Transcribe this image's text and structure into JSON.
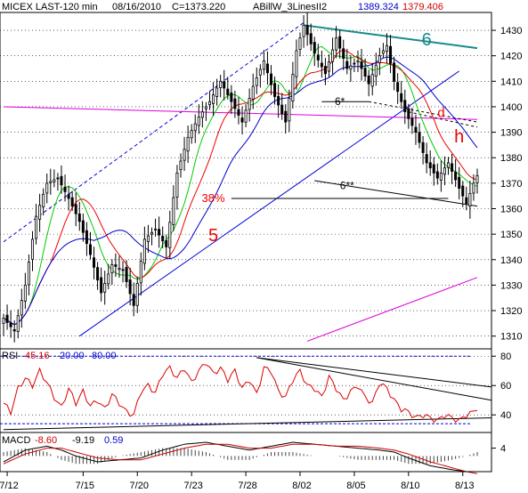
{
  "chart_data": [
    {
      "type": "candlestick",
      "panel": "price",
      "header": {
        "symbol": "MICEX LAST-120 min",
        "date": "08/16/2010",
        "close": "C=1373.220",
        "study": "ABillW_3LinesII2",
        "value1": "1389.324",
        "value2": "1379.406"
      },
      "ylim": [
        1305,
        1437
      ],
      "yticks": [
        1310,
        1320,
        1330,
        1340,
        1350,
        1360,
        1370,
        1380,
        1390,
        1400,
        1410,
        1420,
        1430
      ],
      "xlabels": [
        {
          "label": "7/12",
          "bar": 1
        },
        {
          "label": "7/15",
          "bar": 22
        },
        {
          "label": "7/20",
          "bar": 37
        },
        {
          "label": "7/23",
          "bar": 52
        },
        {
          "label": "7/28",
          "bar": 67
        },
        {
          "label": "8/02",
          "bar": 82
        },
        {
          "label": "8/05",
          "bar": 97
        },
        {
          "label": "8/10",
          "bar": 112
        },
        {
          "label": "8/13",
          "bar": 127
        }
      ],
      "bar_count": 132,
      "close_anchors": [
        [
          0,
          1317
        ],
        [
          3,
          1312
        ],
        [
          6,
          1330
        ],
        [
          9,
          1357
        ],
        [
          12,
          1370
        ],
        [
          15,
          1372
        ],
        [
          18,
          1364
        ],
        [
          21,
          1355
        ],
        [
          24,
          1342
        ],
        [
          27,
          1327
        ],
        [
          30,
          1338
        ],
        [
          33,
          1336
        ],
        [
          36,
          1322
        ],
        [
          39,
          1348
        ],
        [
          42,
          1352
        ],
        [
          45,
          1345
        ],
        [
          48,
          1374
        ],
        [
          51,
          1388
        ],
        [
          54,
          1396
        ],
        [
          57,
          1402
        ],
        [
          60,
          1410
        ],
        [
          63,
          1402
        ],
        [
          66,
          1394
        ],
        [
          69,
          1408
        ],
        [
          72,
          1418
        ],
        [
          75,
          1404
        ],
        [
          78,
          1394
        ],
        [
          81,
          1422
        ],
        [
          83,
          1432
        ],
        [
          86,
          1421
        ],
        [
          89,
          1413
        ],
        [
          92,
          1427
        ],
        [
          95,
          1415
        ],
        [
          98,
          1418
        ],
        [
          101,
          1409
        ],
        [
          104,
          1420
        ],
        [
          106,
          1424
        ],
        [
          108,
          1410
        ],
        [
          111,
          1398
        ],
        [
          114,
          1390
        ],
        [
          117,
          1378
        ],
        [
          120,
          1372
        ],
        [
          123,
          1378
        ],
        [
          126,
          1368
        ],
        [
          128,
          1362
        ],
        [
          130,
          1370
        ],
        [
          131,
          1373
        ]
      ],
      "moving_averages": [
        {
          "color": "#00cc00",
          "period": 8
        },
        {
          "color": "#ee0000",
          "period": 14
        },
        {
          "color": "#0000cc",
          "period": 26
        }
      ],
      "annotations": [
        {
          "text": "6",
          "color": "#1a8a8a"
        },
        {
          "text": "5",
          "color": "#ee0000"
        },
        {
          "text": "h",
          "color": "#ee0000"
        },
        {
          "text": "d",
          "color": "#ee0000"
        },
        {
          "text": "38%",
          "color": "#ee0000"
        },
        {
          "text": "6*",
          "color": "#000000"
        },
        {
          "text": "6**",
          "color": "#000000"
        }
      ],
      "lines": [
        {
          "name": "channel-6",
          "color": "#1a8a8a",
          "from": [
            83,
            1432
          ],
          "to": [
            131,
            1423
          ]
        },
        {
          "name": "uptrend-5",
          "color": "#0000dd",
          "from": [
            21,
            1310
          ],
          "to": [
            126,
            1414
          ]
        },
        {
          "name": "uptrend-5-dashed",
          "color": "#0000dd",
          "from": [
            0,
            1347
          ],
          "to": [
            83,
            1433
          ]
        },
        {
          "name": "magenta-top",
          "color": "#dd00dd",
          "from": [
            0,
            1400
          ],
          "to": [
            131,
            1395
          ]
        },
        {
          "name": "magenta-bottom",
          "color": "#dd00dd",
          "from": [
            84,
            1308
          ],
          "to": [
            131,
            1333
          ]
        },
        {
          "name": "fib-38",
          "color": "#000000",
          "from": [
            63,
            1364
          ],
          "to": [
            123,
            1364
          ]
        },
        {
          "name": "line-6-star",
          "color": "#000000",
          "from": [
            88,
            1402
          ],
          "to": [
            101,
            1402
          ]
        },
        {
          "name": "line-6-star2",
          "color": "#000000",
          "from": [
            86,
            1371
          ],
          "to": [
            131,
            1361
          ]
        }
      ]
    },
    {
      "type": "line",
      "panel": "rsi",
      "header": {
        "label": "RSI",
        "value": "45.16",
        "low": "20.00",
        "high": "80.00"
      },
      "ylim": [
        28,
        85
      ],
      "yticks": [
        40,
        60,
        80
      ],
      "hlines": [
        80,
        34
      ],
      "anchors": [
        [
          0,
          48
        ],
        [
          2,
          42
        ],
        [
          4,
          58
        ],
        [
          6,
          65
        ],
        [
          8,
          60
        ],
        [
          10,
          70
        ],
        [
          12,
          62
        ],
        [
          14,
          52
        ],
        [
          16,
          45
        ],
        [
          18,
          58
        ],
        [
          20,
          48
        ],
        [
          22,
          56
        ],
        [
          24,
          46
        ],
        [
          26,
          50
        ],
        [
          28,
          44
        ],
        [
          30,
          54
        ],
        [
          32,
          48
        ],
        [
          34,
          42
        ],
        [
          36,
          40
        ],
        [
          38,
          56
        ],
        [
          40,
          60
        ],
        [
          42,
          55
        ],
        [
          44,
          68
        ],
        [
          46,
          72
        ],
        [
          48,
          65
        ],
        [
          50,
          72
        ],
        [
          52,
          62
        ],
        [
          54,
          70
        ],
        [
          56,
          76
        ],
        [
          58,
          68
        ],
        [
          60,
          72
        ],
        [
          62,
          64
        ],
        [
          64,
          70
        ],
        [
          66,
          58
        ],
        [
          68,
          64
        ],
        [
          70,
          54
        ],
        [
          72,
          72
        ],
        [
          74,
          70
        ],
        [
          76,
          56
        ],
        [
          78,
          52
        ],
        [
          80,
          64
        ],
        [
          82,
          70
        ],
        [
          84,
          60
        ],
        [
          86,
          58
        ],
        [
          88,
          52
        ],
        [
          90,
          66
        ],
        [
          92,
          58
        ],
        [
          94,
          50
        ],
        [
          96,
          56
        ],
        [
          98,
          60
        ],
        [
          100,
          52
        ],
        [
          102,
          48
        ],
        [
          104,
          62
        ],
        [
          106,
          58
        ],
        [
          108,
          50
        ],
        [
          110,
          44
        ],
        [
          112,
          42
        ],
        [
          114,
          38
        ],
        [
          116,
          40
        ],
        [
          118,
          38
        ],
        [
          120,
          36
        ],
        [
          122,
          40
        ],
        [
          124,
          38
        ],
        [
          126,
          36
        ],
        [
          128,
          40
        ],
        [
          130,
          42
        ],
        [
          131,
          45
        ]
      ],
      "lines": [
        {
          "color": "#000000",
          "from": [
            70,
            79
          ],
          "to": [
            131,
            50
          ]
        },
        {
          "color": "#000000",
          "from": [
            70,
            79
          ],
          "to": [
            131,
            59
          ]
        },
        {
          "color": "#000000",
          "from": [
            0,
            30
          ],
          "to": [
            131,
            38
          ]
        }
      ]
    },
    {
      "type": "histogram",
      "panel": "macd",
      "header": {
        "label": "MACD",
        "value1": "-8.60",
        "value2": "-9.19",
        "value3": "0.59"
      },
      "ylim": [
        -8,
        12
      ],
      "yticks": [
        4
      ],
      "macd_anchors": [
        [
          0,
          -3
        ],
        [
          6,
          3
        ],
        [
          12,
          5
        ],
        [
          16,
          3
        ],
        [
          20,
          0
        ],
        [
          26,
          -3
        ],
        [
          32,
          -2
        ],
        [
          38,
          -1
        ],
        [
          44,
          3
        ],
        [
          50,
          6
        ],
        [
          56,
          7
        ],
        [
          62,
          5
        ],
        [
          68,
          3
        ],
        [
          74,
          5
        ],
        [
          80,
          7
        ],
        [
          86,
          6
        ],
        [
          92,
          5
        ],
        [
          98,
          4
        ],
        [
          104,
          3
        ],
        [
          108,
          2
        ],
        [
          112,
          -1
        ],
        [
          118,
          -5
        ],
        [
          124,
          -7
        ],
        [
          128,
          -8
        ],
        [
          131,
          -8
        ]
      ],
      "signal_anchors": [
        [
          0,
          -4
        ],
        [
          6,
          1
        ],
        [
          12,
          4
        ],
        [
          16,
          4
        ],
        [
          20,
          2
        ],
        [
          26,
          -1
        ],
        [
          32,
          -2
        ],
        [
          38,
          -2
        ],
        [
          44,
          1
        ],
        [
          50,
          4
        ],
        [
          56,
          6
        ],
        [
          62,
          6
        ],
        [
          68,
          4
        ],
        [
          74,
          4
        ],
        [
          80,
          6
        ],
        [
          86,
          6
        ],
        [
          92,
          5
        ],
        [
          98,
          5
        ],
        [
          104,
          4
        ],
        [
          108,
          3
        ],
        [
          112,
          1
        ],
        [
          118,
          -3
        ],
        [
          124,
          -6
        ],
        [
          128,
          -8
        ],
        [
          131,
          -9
        ]
      ]
    }
  ]
}
